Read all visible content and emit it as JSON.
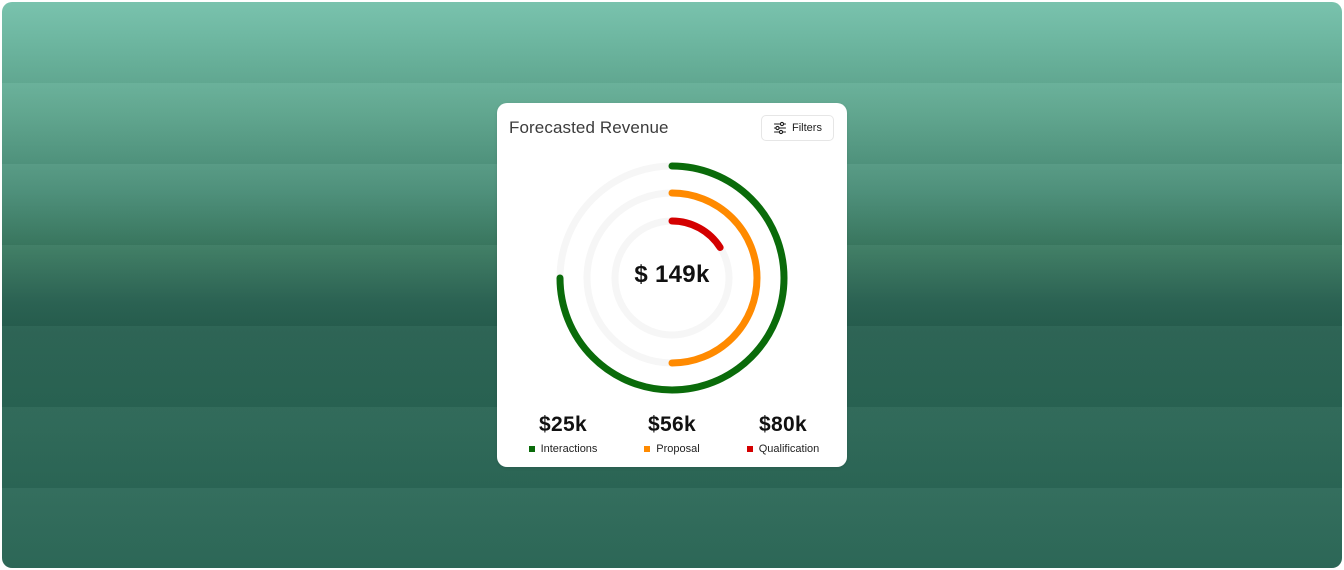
{
  "widget": {
    "title": "Forecasted Revenue",
    "filters_label": "Filters",
    "filters_icon": "sliders-icon",
    "total": "$ 149k",
    "colors": {
      "interactions": "#0a6b0a",
      "proposal": "#ff8a00",
      "qualification": "#d40000",
      "track": "#f6f6f6"
    },
    "stats": [
      {
        "value": "$25k",
        "label": "Interactions",
        "color": "#0a6b0a"
      },
      {
        "value": "$56k",
        "label": "Proposal",
        "color": "#ff8a00"
      },
      {
        "value": "$80k",
        "label": "Qualification",
        "color": "#d40000"
      }
    ],
    "rings": [
      {
        "name": "interactions",
        "color": "#0a6b0a",
        "fraction": 0.75
      },
      {
        "name": "proposal",
        "color": "#ff8a00",
        "fraction": 0.5
      },
      {
        "name": "qualification",
        "color": "#d40000",
        "fraction": 0.16
      }
    ]
  }
}
